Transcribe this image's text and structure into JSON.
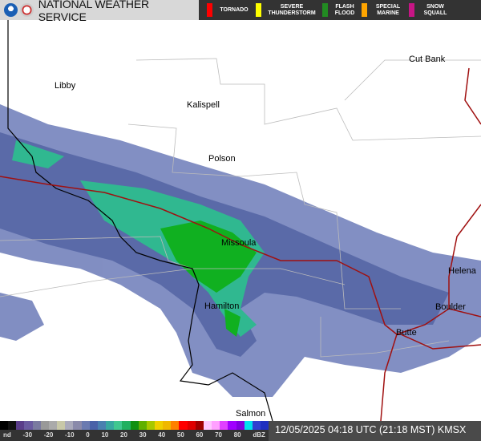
{
  "header": {
    "title": "NATIONAL WEATHER SERVICE",
    "logos": [
      "noaa-logo",
      "nws-logo"
    ]
  },
  "warnings": [
    {
      "label": "TORNADO",
      "color": "#ff0000"
    },
    {
      "label": "SEVERE THUNDERSTORM",
      "color": "#ffff00"
    },
    {
      "label": "FLASH FLOOD",
      "color": "#228b22"
    },
    {
      "label": "SPECIAL MARINE",
      "color": "#ffa500"
    },
    {
      "label": "SNOW SQUALL",
      "color": "#c71585"
    }
  ],
  "cities": [
    "Libby",
    "Kalispell",
    "Polson",
    "Missoula",
    "Hamilton",
    "Cut Bank",
    "Helena",
    "Boulder",
    "Butte",
    "Salmon"
  ],
  "legend": {
    "ticks": [
      "nd",
      "-30",
      "-20",
      "-10",
      "0",
      "10",
      "20",
      "30",
      "40",
      "50",
      "60",
      "70",
      "80",
      "dBZ"
    ],
    "colors": [
      "#000",
      "#111",
      "#5a3d8a",
      "#6a5aa0",
      "#7a7aa0",
      "#999",
      "#aaa",
      "#c8c8a8",
      "#aab",
      "#8a8aaa",
      "#6a7ab0",
      "#4a62a8",
      "#4a80b0",
      "#38a8a0",
      "#40c890",
      "#20b060",
      "#109010",
      "#60b000",
      "#a8c800",
      "#f0d000",
      "#f0b800",
      "#ff8000",
      "#ff0000",
      "#e00000",
      "#a00000",
      "#ffc8ff",
      "#ffa0ff",
      "#e040ff",
      "#a000ff",
      "#8000e0",
      "#00e0ee",
      "#3040d0",
      "#2030c0"
    ]
  },
  "timestamp": "12/05/2025 04:18 UTC (21:18 MST) KMSX"
}
